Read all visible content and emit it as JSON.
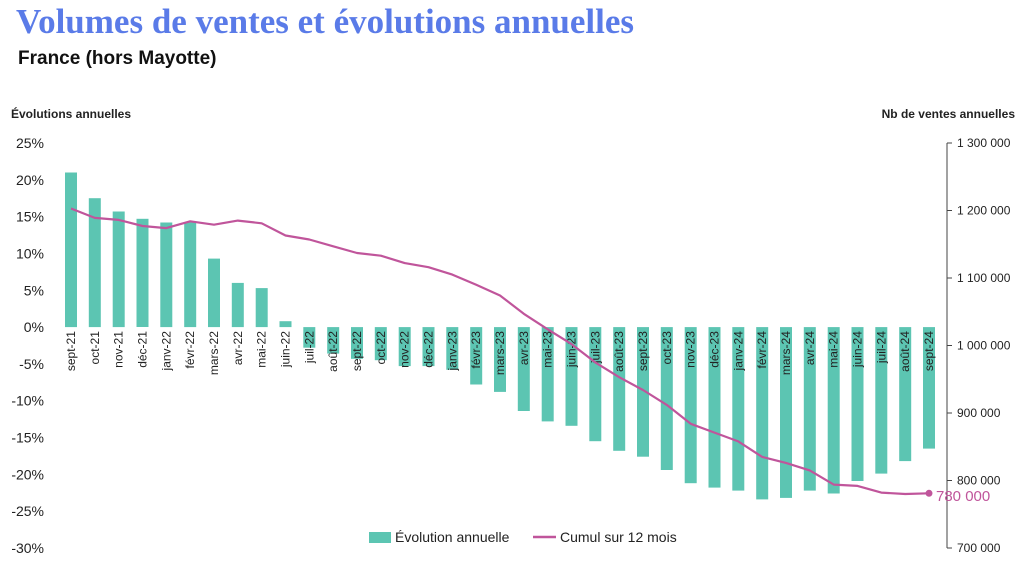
{
  "header": {
    "title": "Volumes de ventes et évolutions annuelles",
    "subtitle": "France (hors Mayotte)"
  },
  "colors": {
    "title": "#5a7be8",
    "bars": "#5cc5b2",
    "line": "#c0559b",
    "axis_text": "#222222"
  },
  "chart_data": {
    "type": "bar",
    "categories": [
      "sept-21",
      "oct-21",
      "nov-21",
      "déc-21",
      "janv-22",
      "févr-22",
      "mars-22",
      "avr-22",
      "mai-22",
      "juin-22",
      "juil-22",
      "août-22",
      "sept-22",
      "oct-22",
      "nov-22",
      "déc-22",
      "janv-23",
      "févr-23",
      "mars-23",
      "avr-23",
      "mai-23",
      "juin-23",
      "juil-23",
      "août-23",
      "sept-23",
      "oct-23",
      "nov-23",
      "déc-23",
      "janv-24",
      "févr-24",
      "mars-24",
      "avr-24",
      "mai-24",
      "juin-24",
      "juil-24",
      "août-24",
      "sept-24"
    ],
    "series": [
      {
        "name": "Évolution annuelle",
        "type": "bar",
        "axis": "left",
        "values": [
          21.0,
          17.5,
          15.7,
          14.7,
          14.2,
          14.2,
          9.3,
          6.0,
          5.3,
          0.8,
          -2.8,
          -3.6,
          -4.3,
          -4.5,
          -5.3,
          -5.3,
          -5.8,
          -7.8,
          -8.8,
          -11.4,
          -12.8,
          -13.4,
          -15.5,
          -16.8,
          -17.6,
          -19.4,
          -21.2,
          -21.8,
          -22.2,
          -23.4,
          -23.2,
          -22.2,
          -22.6,
          -20.9,
          -19.9,
          -18.2,
          -16.5
        ]
      },
      {
        "name": "Cumul sur 12 mois",
        "type": "line",
        "axis": "right",
        "values": [
          1203000,
          1189000,
          1186000,
          1177000,
          1174000,
          1184000,
          1179000,
          1185000,
          1181000,
          1163000,
          1157000,
          1147000,
          1137000,
          1133000,
          1122000,
          1116000,
          1105000,
          1090000,
          1074000,
          1047000,
          1024000,
          1002000,
          975000,
          953000,
          934000,
          912000,
          884000,
          871000,
          858000,
          835000,
          826000,
          815000,
          794000,
          792000,
          782000,
          780000,
          781000
        ]
      }
    ],
    "left_axis": {
      "label": "Évolutions annuelles",
      "ylim": [
        -30,
        25
      ],
      "ticks": [
        "25%",
        "20%",
        "15%",
        "10%",
        "5%",
        "0%",
        "-5%",
        "-10%",
        "-15%",
        "-20%",
        "-25%",
        "-30%"
      ]
    },
    "right_axis": {
      "label": "Nb de ventes annuelles",
      "ylim": [
        700000,
        1300000
      ],
      "ticks": [
        "1 300 000",
        "1 200 000",
        "1 100 000",
        "1 000 000",
        "900 000",
        "800 000",
        "700 000"
      ]
    },
    "annotation": "780 000",
    "legend": {
      "placement": "bottom-center",
      "items": [
        "Évolution annuelle",
        "Cumul sur 12 mois"
      ]
    },
    "grid": false
  }
}
